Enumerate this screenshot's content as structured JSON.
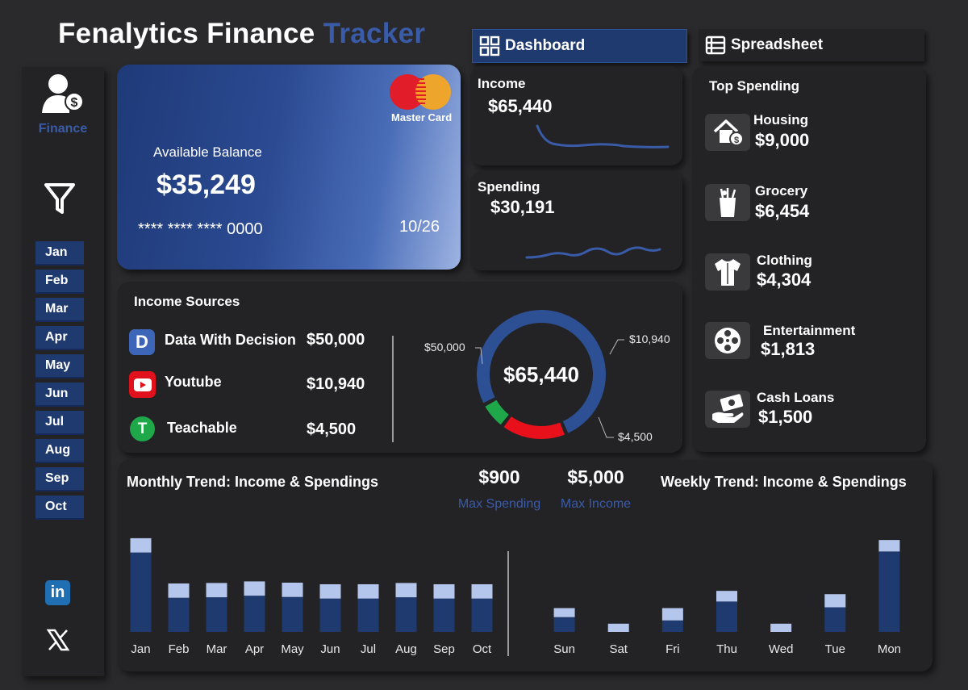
{
  "header": {
    "title_main": "Fenalytics Finance",
    "title_accent": "Tracker"
  },
  "nav": {
    "dashboard": "Dashboard",
    "spreadsheet": "Spreadsheet"
  },
  "sidebar": {
    "finance_label": "Finance",
    "months": [
      "Jan",
      "Feb",
      "Mar",
      "Apr",
      "May",
      "Jun",
      "Jul",
      "Aug",
      "Sep",
      "Oct"
    ]
  },
  "card": {
    "brand": "Master Card",
    "balance_label": "Available Balance",
    "balance": "$35,249",
    "number": "**** **** **** 0000",
    "expiry": "10/26"
  },
  "income": {
    "label": "Income",
    "value": "$65,440"
  },
  "spending": {
    "label": "Spending",
    "value": "$30,191"
  },
  "income_sources": {
    "title": "Income Sources",
    "items": [
      {
        "name": "Data With Decision",
        "value": "$50,000",
        "icon": "D"
      },
      {
        "name": "Youtube",
        "value": "$10,940",
        "icon": "youtube-icon"
      },
      {
        "name": "Teachable",
        "value": "$4,500",
        "icon": "T"
      }
    ],
    "donut_total": "$65,440",
    "donut_labels": [
      "$50,000",
      "$10,940",
      "$4,500"
    ]
  },
  "top_spending": {
    "title": "Top Spending",
    "items": [
      {
        "name": "Housing",
        "value": "$9,000"
      },
      {
        "name": "Grocery",
        "value": "$6,454"
      },
      {
        "name": "Clothing",
        "value": "$4,304"
      },
      {
        "name": "Entertainment",
        "value": "$1,813"
      },
      {
        "name": "Cash Loans",
        "value": "$1,500"
      }
    ]
  },
  "trends": {
    "monthly_title": "Monthly Trend: Income & Spendings",
    "weekly_title": "Weekly Trend: Income & Spendings",
    "max_spending": "$900",
    "max_spending_label": "Max Spending",
    "max_income": "$5,000",
    "max_income_label": "Max Income"
  },
  "colors": {
    "income": "#1f3a6e",
    "spending": "#b4c6ec",
    "accent": "#3a5ba8"
  },
  "chart_data": [
    {
      "type": "bar",
      "title": "Monthly Trend: Income & Spendings",
      "categories": [
        "Jan",
        "Feb",
        "Mar",
        "Apr",
        "May",
        "Jun",
        "Jul",
        "Aug",
        "Sep",
        "Oct"
      ],
      "series": [
        {
          "name": "Income",
          "values": [
            5000,
            2150,
            2180,
            2280,
            2200,
            2100,
            2100,
            2180,
            2100,
            2100
          ]
        },
        {
          "name": "Spending",
          "values": [
            900,
            900,
            900,
            900,
            900,
            900,
            900,
            900,
            900,
            900
          ]
        }
      ],
      "stacked": true,
      "ylim": [
        0,
        6200
      ]
    },
    {
      "type": "bar",
      "title": "Weekly Trend: Income & Spendings",
      "categories": [
        "Sun",
        "Sat",
        "Fri",
        "Thu",
        "Wed",
        "Tue",
        "Mon"
      ],
      "series": [
        {
          "name": "Income",
          "values": [
            900,
            0,
            700,
            1850,
            0,
            1500,
            4900
          ]
        },
        {
          "name": "Spending",
          "values": [
            550,
            500,
            750,
            650,
            500,
            800,
            700
          ]
        }
      ],
      "stacked": true,
      "ylim": [
        0,
        6000
      ]
    },
    {
      "type": "pie",
      "title": "Income Sources",
      "categories": [
        "Data With Decision",
        "Youtube",
        "Teachable"
      ],
      "values": [
        50000,
        10940,
        4500
      ]
    }
  ]
}
